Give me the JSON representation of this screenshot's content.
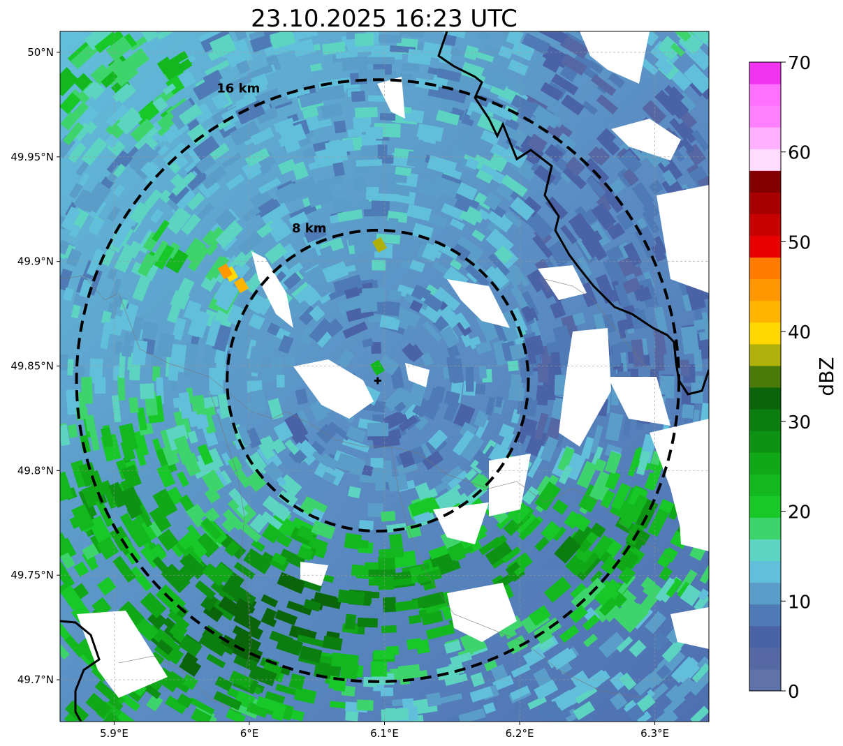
{
  "title": "23.10.2025 16:23 UTC",
  "map": {
    "extent": {
      "lon_min": 5.86,
      "lon_max": 6.34,
      "lat_min": 49.68,
      "lat_max": 50.01
    },
    "radar_center": {
      "lon": 6.095,
      "lat": 49.843
    },
    "lon_ticks": [
      {
        "value": 5.9,
        "label": "5.9°E"
      },
      {
        "value": 6.0,
        "label": "6°E"
      },
      {
        "value": 6.1,
        "label": "6.1°E"
      },
      {
        "value": 6.2,
        "label": "6.2°E"
      },
      {
        "value": 6.3,
        "label": "6.3°E"
      }
    ],
    "lat_ticks": [
      {
        "value": 50.0,
        "label": "50°N"
      },
      {
        "value": 49.95,
        "label": "49.95°N"
      },
      {
        "value": 49.9,
        "label": "49.9°N"
      },
      {
        "value": 49.85,
        "label": "49.85°N"
      },
      {
        "value": 49.8,
        "label": "49.8°N"
      },
      {
        "value": 49.75,
        "label": "49.75°N"
      },
      {
        "value": 49.7,
        "label": "49.7°N"
      }
    ],
    "range_rings": [
      {
        "radius_km": 8,
        "label": "8 km"
      },
      {
        "radius_km": 16,
        "label": "16 km"
      }
    ],
    "gridlines": true
  },
  "colorbar": {
    "label": "dBZ",
    "min": 0,
    "max": 70,
    "ticks": [
      0,
      10,
      20,
      30,
      40,
      50,
      60,
      70
    ],
    "bins": [
      "#5f73a8",
      "#5668a3",
      "#4a62a6",
      "#4e7ab5",
      "#5b9dc9",
      "#62bfdb",
      "#5cd4c1",
      "#3ed46c",
      "#18c829",
      "#12b81e",
      "#10a817",
      "#0e9213",
      "#0c7e10",
      "#0a6409",
      "#4a7a0a",
      "#afb00a",
      "#ffd800",
      "#ffb500",
      "#ff9800",
      "#ff7c00",
      "#e80000",
      "#c80000",
      "#a80000",
      "#820000",
      "#ffdcff",
      "#ffb0ff",
      "#ff80ff",
      "#ff70ff",
      "#f034f0"
    ]
  }
}
